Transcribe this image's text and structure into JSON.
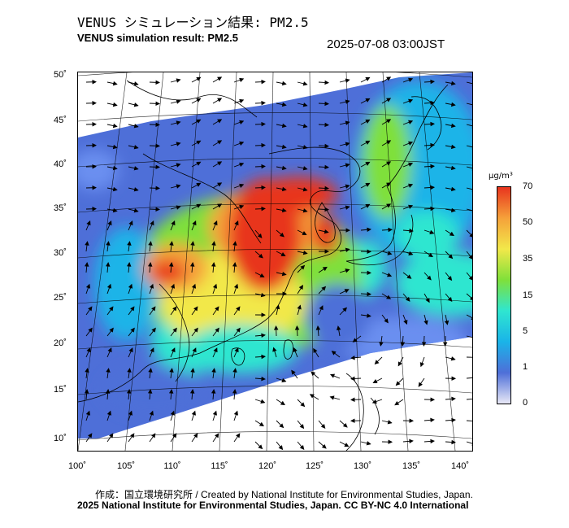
{
  "header": {
    "title_jp": "VENUS シミュレーション結果: PM2.5",
    "title_en": "VENUS simulation result: PM2.5",
    "timestamp": "2025-07-08 03:00JST"
  },
  "map": {
    "lat_labels": [
      "50˚",
      "45˚",
      "40˚",
      "35˚",
      "30˚",
      "25˚",
      "20˚",
      "15˚",
      "10˚"
    ],
    "lon_labels": [
      "100˚",
      "105˚",
      "110˚",
      "115˚",
      "120˚",
      "125˚",
      "130˚",
      "135˚",
      "140˚"
    ],
    "lat_range": [
      9,
      51
    ],
    "lon_range": [
      100,
      142
    ]
  },
  "colorbar": {
    "unit_label": "µg/m³",
    "tick_labels": [
      "70",
      "50",
      "35",
      "15",
      "5",
      "1",
      "0"
    ],
    "colors": [
      "#e8e8f6",
      "#4e6fd8",
      "#1ab4e8",
      "#2fe6d0",
      "#7fe03a",
      "#f2e84a",
      "#f5a13a",
      "#e8341e"
    ]
  },
  "footer": {
    "credit_line": "作成：国立環境研究所 / Created by National Institute for Environmental Studies, Japan.",
    "copyright_line": "2025 National Institute for Environmental Studies, Japan. CC BY-NC 4.0 International"
  }
}
